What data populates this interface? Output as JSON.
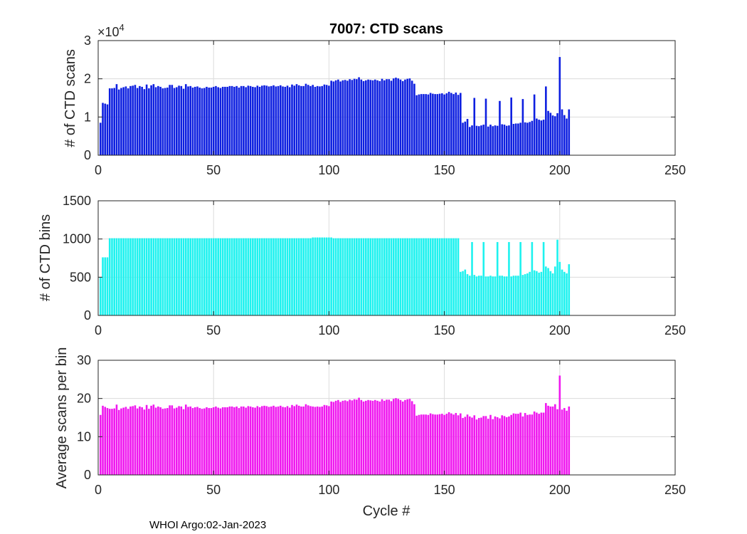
{
  "figure": {
    "title": "7007: CTD scans",
    "footer": "WHOI Argo:02-Jan-2023",
    "xlabel": "Cycle #"
  },
  "chart_data": [
    {
      "type": "bar",
      "name": "ctd-scans",
      "title": "7007: CTD scans",
      "xlabel": "",
      "ylabel": "# of CTD scans",
      "exponent_label": "×10",
      "exponent": "4",
      "color": "#0d1fe0",
      "xlim": [
        0,
        250
      ],
      "ylim": [
        0,
        3
      ],
      "xticks": [
        "0",
        "50",
        "100",
        "150",
        "200",
        "250"
      ],
      "yticks": [
        "0",
        "1",
        "2",
        "3"
      ],
      "grid": true,
      "start_cycle": 1,
      "values": [
        0.85,
        1.37,
        1.35,
        1.33,
        1.75,
        1.75,
        1.76,
        1.86,
        1.72,
        1.76,
        1.78,
        1.8,
        1.75,
        1.81,
        1.82,
        1.84,
        1.76,
        1.81,
        1.79,
        1.73,
        1.85,
        1.75,
        1.83,
        1.86,
        1.78,
        1.81,
        1.79,
        1.75,
        1.76,
        1.77,
        1.84,
        1.84,
        1.76,
        1.78,
        1.82,
        1.81,
        1.74,
        1.86,
        1.8,
        1.81,
        1.77,
        1.79,
        1.8,
        1.77,
        1.75,
        1.76,
        1.79,
        1.77,
        1.77,
        1.79,
        1.81,
        1.78,
        1.76,
        1.79,
        1.79,
        1.79,
        1.81,
        1.81,
        1.79,
        1.81,
        1.77,
        1.81,
        1.81,
        1.78,
        1.82,
        1.81,
        1.79,
        1.78,
        1.82,
        1.79,
        1.82,
        1.83,
        1.82,
        1.8,
        1.81,
        1.83,
        1.8,
        1.81,
        1.83,
        1.8,
        1.79,
        1.82,
        1.78,
        1.85,
        1.82,
        1.86,
        1.83,
        1.81,
        1.81,
        1.87,
        1.84,
        1.81,
        1.84,
        1.79,
        1.81,
        1.8,
        1.81,
        1.85,
        1.84,
        1.82,
        1.95,
        1.93,
        1.96,
        1.98,
        1.93,
        1.96,
        1.97,
        1.95,
        1.99,
        1.97,
        2.0,
        1.99,
        2.04,
        1.98,
        1.94,
        1.96,
        1.98,
        1.97,
        1.96,
        1.98,
        1.96,
        1.94,
        2.0,
        1.96,
        1.99,
        1.99,
        1.95,
        2.01,
        2.03,
        2.01,
        1.98,
        1.94,
        1.98,
        2.0,
        2.01,
        1.95,
        1.87,
        1.57,
        1.59,
        1.6,
        1.6,
        1.6,
        1.59,
        1.63,
        1.61,
        1.6,
        1.6,
        1.61,
        1.62,
        1.59,
        1.62,
        1.66,
        1.63,
        1.6,
        1.64,
        1.58,
        1.63,
        0.85,
        0.88,
        0.95,
        0.74,
        0.78,
        1.5,
        0.77,
        0.76,
        0.78,
        0.8,
        1.48,
        0.75,
        0.8,
        0.76,
        0.78,
        0.77,
        1.42,
        0.81,
        0.8,
        0.77,
        0.78,
        1.51,
        0.82,
        0.83,
        0.83,
        0.85,
        1.47,
        0.86,
        0.85,
        0.87,
        0.9,
        1.59,
        0.96,
        0.93,
        0.91,
        0.93,
        1.8,
        1.16,
        1.11,
        1.04,
        1.02,
        1.1,
        2.57,
        1.2,
        1.05,
        0.96,
        1.2
      ]
    },
    {
      "type": "bar",
      "name": "ctd-bins",
      "title": "",
      "xlabel": "",
      "ylabel": "# of CTD bins",
      "color": "#1ef2ef",
      "xlim": [
        0,
        250
      ],
      "ylim": [
        0,
        1500
      ],
      "xticks": [
        "0",
        "50",
        "100",
        "150",
        "200",
        "250"
      ],
      "yticks": [
        "0",
        "500",
        "1000",
        "1500"
      ],
      "grid": true,
      "start_cycle": 1,
      "values": [
        500,
        760,
        760,
        760,
        1010,
        1010,
        1010,
        1010,
        1010,
        1010,
        1010,
        1010,
        1010,
        1010,
        1010,
        1010,
        1010,
        1010,
        1010,
        1010,
        1010,
        1010,
        1010,
        1010,
        1010,
        1010,
        1010,
        1010,
        1010,
        1010,
        1010,
        1010,
        1010,
        1010,
        1010,
        1010,
        1010,
        1010,
        1010,
        1010,
        1010,
        1010,
        1010,
        1010,
        1010,
        1010,
        1010,
        1010,
        1010,
        1010,
        1010,
        1010,
        1010,
        1010,
        1010,
        1010,
        1010,
        1010,
        1010,
        1010,
        1010,
        1010,
        1010,
        1010,
        1010,
        1010,
        1010,
        1010,
        1010,
        1010,
        1010,
        1010,
        1010,
        1010,
        1010,
        1010,
        1010,
        1010,
        1010,
        1010,
        1010,
        1010,
        1010,
        1010,
        1010,
        1010,
        1010,
        1010,
        1010,
        1010,
        1010,
        1010,
        1020,
        1020,
        1020,
        1020,
        1020,
        1020,
        1020,
        1020,
        1020,
        1010,
        1010,
        1010,
        1010,
        1010,
        1010,
        1010,
        1010,
        1010,
        1010,
        1010,
        1010,
        1010,
        1010,
        1010,
        1010,
        1010,
        1010,
        1010,
        1010,
        1010,
        1010,
        1010,
        1010,
        1010,
        1010,
        1010,
        1010,
        1010,
        1010,
        1010,
        1010,
        1010,
        1010,
        1010,
        1010,
        1010,
        1010,
        1010,
        1010,
        1010,
        1010,
        1010,
        1010,
        1010,
        1010,
        1010,
        1010,
        1010,
        1010,
        1010,
        1010,
        1010,
        1010,
        1010,
        570,
        580,
        600,
        540,
        520,
        960,
        530,
        510,
        520,
        520,
        960,
        510,
        510,
        520,
        510,
        510,
        960,
        520,
        520,
        510,
        510,
        960,
        510,
        520,
        520,
        520,
        960,
        530,
        540,
        550,
        570,
        960,
        590,
        580,
        560,
        570,
        960,
        640,
        620,
        580,
        550,
        640,
        990,
        700,
        600,
        570,
        550,
        670
      ]
    },
    {
      "type": "bar",
      "name": "avg-scans-per-bin",
      "title": "",
      "xlabel": "Cycle #",
      "ylabel": "Average scans per bin",
      "color": "#ef18ef",
      "xlim": [
        0,
        250
      ],
      "ylim": [
        0,
        30
      ],
      "xticks": [
        "0",
        "50",
        "100",
        "150",
        "200",
        "250"
      ],
      "yticks": [
        "0",
        "10",
        "20",
        "30"
      ],
      "grid": true,
      "start_cycle": 1,
      "values": [
        15.7,
        18.1,
        17.8,
        17.5,
        17.3,
        17.3,
        17.4,
        18.4,
        17.0,
        17.4,
        17.6,
        17.8,
        17.3,
        17.9,
        18.0,
        18.2,
        17.4,
        17.9,
        17.7,
        17.1,
        18.3,
        17.3,
        18.1,
        18.4,
        17.6,
        17.9,
        17.7,
        17.3,
        17.4,
        17.5,
        18.2,
        18.2,
        17.4,
        17.6,
        18.0,
        17.9,
        17.2,
        18.4,
        17.8,
        17.9,
        17.5,
        17.7,
        17.8,
        17.5,
        17.3,
        17.4,
        17.7,
        17.5,
        17.5,
        17.7,
        17.9,
        17.6,
        17.4,
        17.7,
        17.7,
        17.7,
        17.9,
        17.9,
        17.7,
        17.9,
        17.5,
        17.9,
        17.9,
        17.6,
        18.0,
        17.9,
        17.7,
        17.6,
        18.0,
        17.7,
        18.0,
        18.1,
        18.0,
        17.8,
        17.9,
        18.1,
        17.8,
        17.9,
        18.1,
        17.8,
        17.7,
        18.0,
        17.6,
        18.3,
        18.0,
        18.4,
        18.1,
        17.9,
        17.9,
        18.5,
        18.2,
        18.0,
        17.9,
        17.8,
        17.9,
        17.8,
        17.9,
        18.3,
        18.2,
        18.0,
        19.2,
        19.1,
        19.4,
        19.6,
        19.1,
        19.4,
        19.5,
        19.3,
        19.7,
        19.5,
        19.8,
        19.7,
        20.2,
        19.6,
        19.2,
        19.4,
        19.6,
        19.5,
        19.4,
        19.6,
        19.4,
        19.2,
        19.8,
        19.4,
        19.7,
        19.7,
        19.3,
        19.9,
        20.1,
        19.9,
        19.6,
        19.2,
        19.6,
        19.8,
        19.9,
        19.3,
        18.5,
        15.5,
        15.7,
        15.8,
        15.8,
        15.8,
        15.7,
        16.1,
        15.9,
        15.8,
        15.8,
        15.9,
        16.0,
        15.7,
        16.0,
        16.4,
        16.1,
        15.8,
        16.2,
        15.6,
        16.1,
        14.9,
        15.2,
        15.8,
        15.3,
        15.0,
        15.6,
        14.5,
        14.9,
        15.0,
        15.4,
        15.4,
        14.7,
        15.7,
        14.6,
        15.3,
        15.1,
        14.8,
        15.6,
        15.4,
        15.1,
        15.3,
        15.7,
        16.1,
        16.0,
        16.0,
        16.3,
        15.3,
        16.2,
        15.7,
        15.8,
        15.8,
        16.6,
        16.3,
        16.0,
        16.3,
        16.3,
        18.8,
        18.1,
        17.9,
        17.9,
        18.5,
        17.2,
        26.0,
        17.1,
        17.5,
        16.8,
        17.9
      ]
    }
  ]
}
